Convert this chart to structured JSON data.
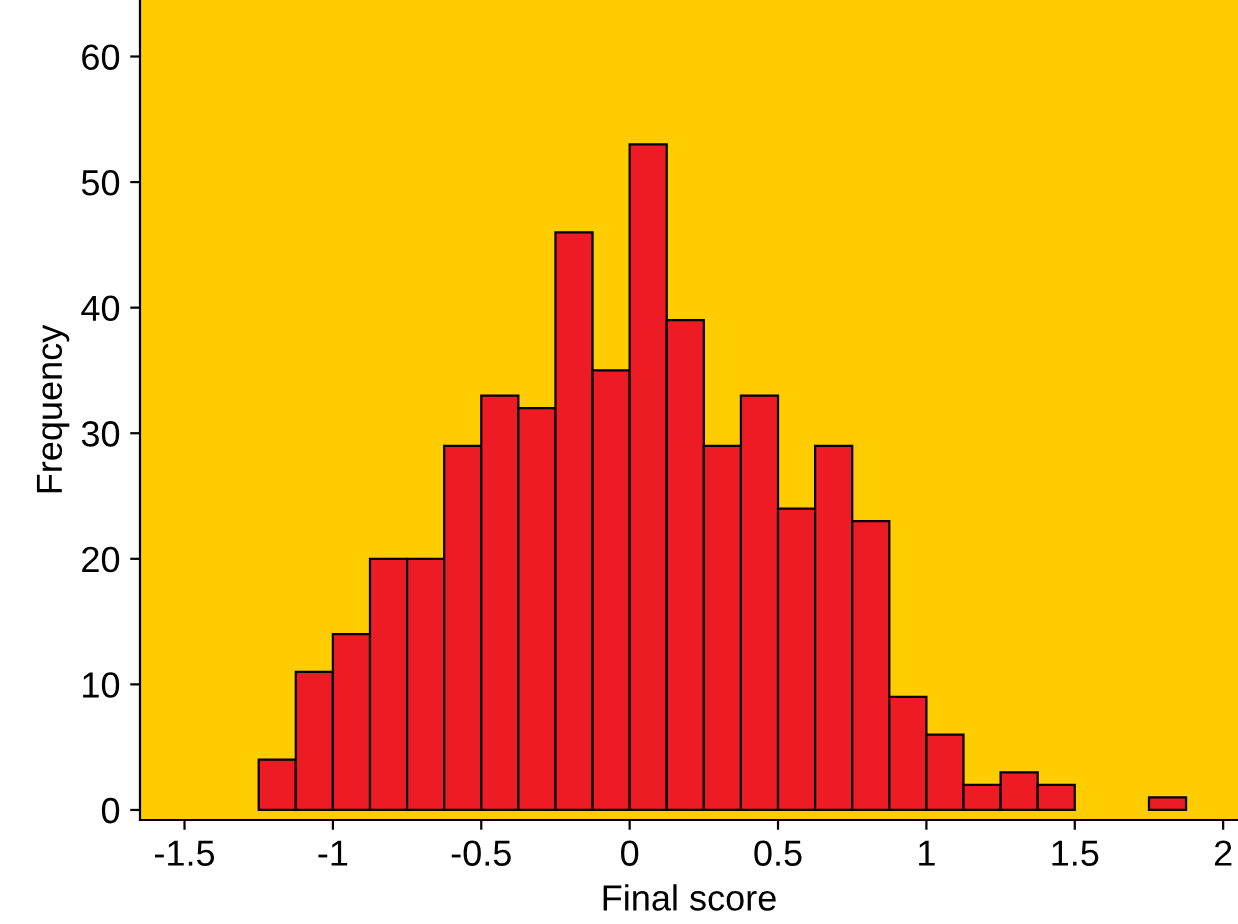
{
  "chart_data": {
    "type": "histogram",
    "xlabel": "Final score",
    "ylabel": "Frequency",
    "bins": [
      -1.25,
      -1.125,
      -1.0,
      -0.875,
      -0.75,
      -0.625,
      -0.5,
      -0.375,
      -0.25,
      -0.125,
      0,
      0.125,
      0.25,
      0.375,
      0.5,
      0.625,
      0.75,
      0.875,
      1.0,
      1.125,
      1.25,
      1.375,
      1.5,
      1.625,
      1.75,
      1.875
    ],
    "values": [
      4,
      11,
      14,
      20,
      20,
      29,
      33,
      32,
      46,
      35,
      53,
      39,
      29,
      33,
      24,
      29,
      23,
      9,
      6,
      2,
      3,
      2,
      0,
      0,
      1
    ],
    "color": "#ed1c24",
    "xlim": [
      -1.65,
      2.05
    ],
    "ylim": [
      -0.8,
      64.5
    ],
    "xticks": [
      {
        "value": -1.5,
        "label": "-1.5"
      },
      {
        "value": -1,
        "label": "-1"
      },
      {
        "value": -0.5,
        "label": "-0.5"
      },
      0,
      0.5,
      1,
      1.5,
      2
    ],
    "yticks": [
      0,
      10,
      20,
      30,
      40,
      50,
      60
    ],
    "grid": false
  }
}
